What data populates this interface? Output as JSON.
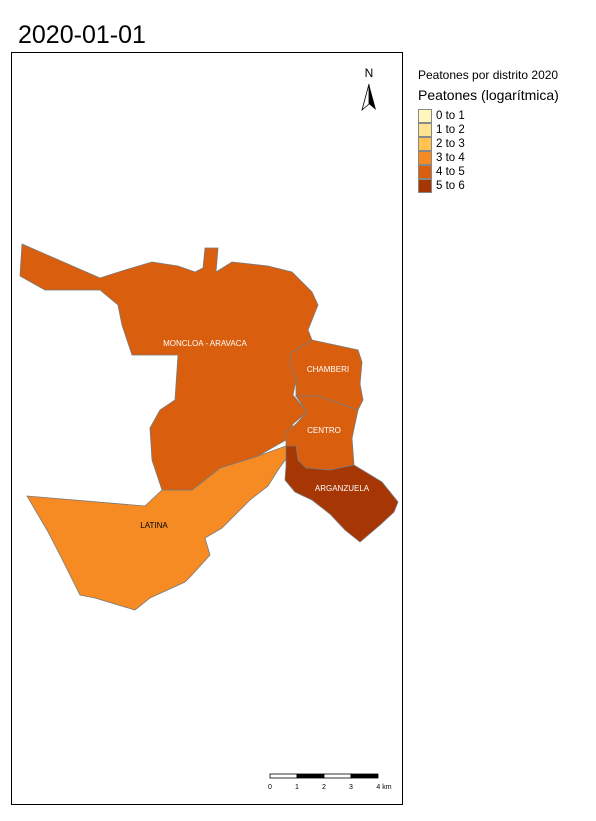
{
  "title": "2020-01-01",
  "legend": {
    "title": "Peatones por distrito 2020",
    "subtitle": "Peatones (logarítmica)",
    "items": [
      {
        "label": "0 to 1",
        "color": "#fff7bc"
      },
      {
        "label": "1 to 2",
        "color": "#fee391"
      },
      {
        "label": "2 to 3",
        "color": "#fec44f"
      },
      {
        "label": "3 to 4",
        "color": "#f68b24"
      },
      {
        "label": "4 to 5",
        "color": "#d95f0e"
      },
      {
        "label": "5 to 6",
        "color": "#a63603"
      }
    ]
  },
  "districts": [
    {
      "name": "MONCLOA - ARAVACA",
      "class": "4 to 5",
      "color": "#d95f0e",
      "label_color": "#ffffff"
    },
    {
      "name": "CHAMBERI",
      "class": "4 to 5",
      "color": "#d95f0e",
      "label_color": "#ffffff"
    },
    {
      "name": "CENTRO",
      "class": "4 to 5",
      "color": "#d95f0e",
      "label_color": "#ffffff"
    },
    {
      "name": "ARGANZUELA",
      "class": "5 to 6",
      "color": "#a63603",
      "label_color": "#ffffff"
    },
    {
      "name": "LATINA",
      "class": "3 to 4",
      "color": "#f68b24",
      "label_color": "#000000"
    }
  ],
  "north_arrow": {
    "label": "N",
    "icon": "north-arrow-icon"
  },
  "scale_bar": {
    "ticks": [
      "0",
      "1",
      "2",
      "3",
      "4 km"
    ]
  }
}
